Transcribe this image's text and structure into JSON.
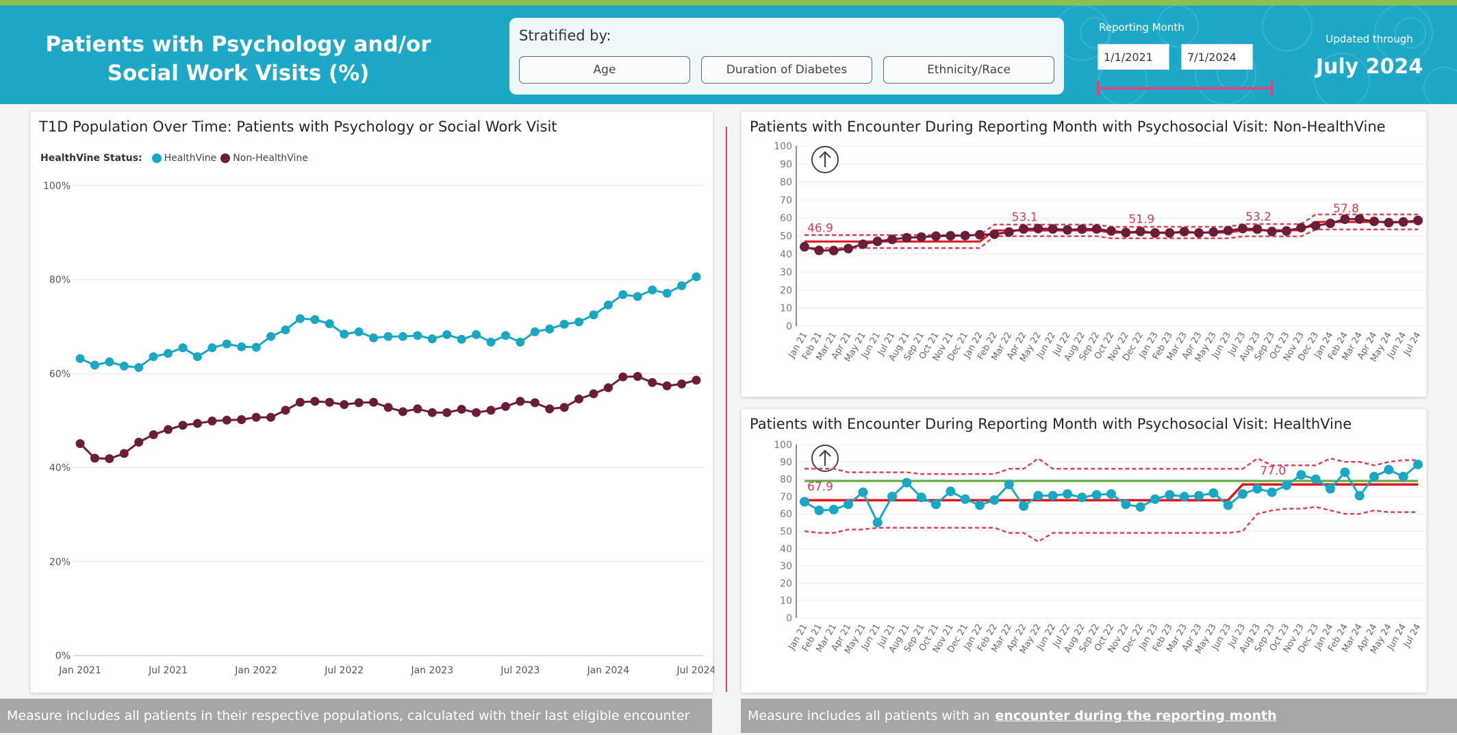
{
  "header": {
    "title": "Patients with Psychology and/or\nSocial Work Visits (%)",
    "stratified_label": "Stratified by:",
    "buttons": [
      "Age",
      "Duration of Diabetes",
      "Ethnicity/Race"
    ],
    "reporting_label": "Reporting Month",
    "date_from": "1/1/2021",
    "date_to": "7/1/2024",
    "updated_label": "Updated through",
    "updated_value": "July 2024"
  },
  "colors": {
    "header": "#1ca8c6",
    "healthvine": "#1aa7c4",
    "non_healthvine": "#6b1d38",
    "center_line": "#e0161e",
    "control_limit": "#e04050",
    "goal_line": "#5daa3c"
  },
  "footer": {
    "left": "Measure includes all patients in their respective populations, calculated with their last eligible encounter",
    "right_prefix": "Measure includes all patients with an",
    "right_link": "encounter during the reporting month"
  },
  "chart_data": [
    {
      "type": "line",
      "title": "T1D Population Over Time: Patients with Psychology or Social Work Visit",
      "legend_title": "HealthVine Status:",
      "legend_position": "top-left",
      "x_ticks": [
        "Jan 2021",
        "Jul 2021",
        "Jan 2022",
        "Jul 2022",
        "Jan 2023",
        "Jul 2023",
        "Jan 2024",
        "Jul 2024"
      ],
      "y_ticks": [
        "0%",
        "20%",
        "40%",
        "60%",
        "80%",
        "100%"
      ],
      "ylim": [
        0,
        100
      ],
      "grid": true,
      "series": [
        {
          "name": "HealthVine",
          "values": [
            63.2,
            61.8,
            62.5,
            61.6,
            61.3,
            63.6,
            64.3,
            65.5,
            63.6,
            65.5,
            66.3,
            65.7,
            65.6,
            67.9,
            69.3,
            71.7,
            71.5,
            70.6,
            68.4,
            68.9,
            67.6,
            67.9,
            67.9,
            68.1,
            67.4,
            68.3,
            67.3,
            68.3,
            66.7,
            68.1,
            66.7,
            68.9,
            69.5,
            70.5,
            71.0,
            72.5,
            74.6,
            76.8,
            76.4,
            77.8,
            77.1,
            78.7,
            80.6
          ]
        },
        {
          "name": "Non-HealthVine",
          "values": [
            45.1,
            42.0,
            41.9,
            43.0,
            45.4,
            47.0,
            48.1,
            49.0,
            49.4,
            49.9,
            50.1,
            50.2,
            50.7,
            50.7,
            52.2,
            53.9,
            54.1,
            53.9,
            53.4,
            53.8,
            53.9,
            52.8,
            51.9,
            52.5,
            51.7,
            51.7,
            52.4,
            51.7,
            52.2,
            53.0,
            54.1,
            53.8,
            52.5,
            52.8,
            54.6,
            55.7,
            57.0,
            59.3,
            59.4,
            58.1,
            57.4,
            57.8,
            58.6
          ]
        }
      ]
    },
    {
      "type": "line",
      "title": "Patients with Encounter During Reporting Month with Psychosocial Visit: Non-HealthVine",
      "x_ticks": [
        "Jan 21",
        "Feb 21",
        "Mar 21",
        "Apr 21",
        "May 21",
        "Jun 21",
        "Jul 21",
        "Aug 21",
        "Sep 21",
        "Oct 21",
        "Nov 21",
        "Dec 21",
        "Jan 22",
        "Feb 22",
        "Mar 22",
        "Apr 22",
        "May 22",
        "Jun 22",
        "Jul 22",
        "Aug 22",
        "Sep 22",
        "Oct 22",
        "Nov 22",
        "Dec 22",
        "Jan 23",
        "Feb 23",
        "Mar 23",
        "Apr 23",
        "May 23",
        "Jun 23",
        "Jul 23",
        "Aug 23",
        "Sep 23",
        "Oct 23",
        "Nov 23",
        "Dec 23",
        "Jan 24",
        "Feb 24",
        "Mar 24",
        "Apr 24",
        "May 24",
        "Jun 24",
        "Jul 24"
      ],
      "y_ticks": [
        "0",
        "10",
        "20",
        "30",
        "40",
        "50",
        "60",
        "70",
        "80",
        "90",
        "100"
      ],
      "ylim": [
        0,
        100
      ],
      "grid": true,
      "center_labels": [
        {
          "x": "Jan 21",
          "label": "46.9"
        },
        {
          "x": "Mar 22",
          "label": "53.1"
        },
        {
          "x": "Nov 22",
          "label": "51.9"
        },
        {
          "x": "Jul 23",
          "label": "53.2"
        },
        {
          "x": "Jan 24",
          "label": "57.8"
        }
      ],
      "phases": [
        {
          "start": "Jan 21",
          "end": "Jan 22",
          "center": 46.9,
          "ucl": 50.5,
          "lcl": 43.3
        },
        {
          "start": "Feb 22",
          "end": "Sep 22",
          "center": 53.1,
          "ucl": 56.3,
          "lcl": 49.9
        },
        {
          "start": "Oct 22",
          "end": "Jun 23",
          "center": 51.9,
          "ucl": 55.1,
          "lcl": 48.7
        },
        {
          "start": "Jul 23",
          "end": "Nov 23",
          "center": 53.2,
          "ucl": 56.6,
          "lcl": 49.8
        },
        {
          "start": "Dec 23",
          "end": "Jul 24",
          "center": 57.8,
          "ucl": 62.0,
          "lcl": 53.6
        }
      ],
      "series": [
        {
          "values": [
            44.0,
            42.0,
            41.9,
            43.0,
            45.4,
            47.0,
            48.1,
            49.0,
            49.4,
            49.9,
            50.1,
            50.2,
            50.7,
            51.0,
            52.2,
            53.9,
            54.1,
            53.9,
            53.4,
            53.8,
            53.9,
            52.8,
            51.9,
            52.5,
            51.7,
            51.7,
            52.4,
            51.7,
            52.2,
            53.0,
            54.1,
            53.8,
            52.5,
            52.8,
            54.6,
            55.7,
            57.0,
            59.3,
            59.4,
            58.1,
            57.4,
            57.8,
            58.6
          ]
        }
      ]
    },
    {
      "type": "line",
      "title": "Patients with Encounter During Reporting Month with Psychosocial Visit: HealthVine",
      "x_ticks": [
        "Jan 21",
        "Feb 21",
        "Mar 21",
        "Apr 21",
        "May 21",
        "Jun 21",
        "Jul 21",
        "Aug 21",
        "Sep 21",
        "Oct 21",
        "Nov 21",
        "Dec 21",
        "Jan 22",
        "Feb 22",
        "Mar 22",
        "Apr 22",
        "May 22",
        "Jun 22",
        "Jul 22",
        "Aug 22",
        "Sep 22",
        "Oct 22",
        "Nov 22",
        "Dec 22",
        "Jan 23",
        "Feb 23",
        "Mar 23",
        "Apr 23",
        "May 23",
        "Jun 23",
        "Jul 23",
        "Aug 23",
        "Sep 23",
        "Oct 23",
        "Nov 23",
        "Dec 23",
        "Jan 24",
        "Feb 24",
        "Mar 24",
        "Apr 24",
        "May 24",
        "Jun 24",
        "Jul 24"
      ],
      "y_ticks": [
        "0",
        "10",
        "20",
        "30",
        "40",
        "50",
        "60",
        "70",
        "80",
        "90",
        "100"
      ],
      "ylim": [
        0,
        100
      ],
      "grid": true,
      "goal": 79,
      "center_labels": [
        {
          "x": "Jan 21",
          "label": "67.9"
        },
        {
          "x": "Aug 23",
          "label": "77.0"
        }
      ],
      "phases": [
        {
          "start": "Jan 21",
          "end": "Jun 23",
          "center": 67.9
        },
        {
          "start": "Jul 23",
          "end": "Jul 24",
          "center": 77.0
        }
      ],
      "ucl": [
        86,
        86,
        86,
        84,
        84,
        84,
        84,
        84,
        83,
        83,
        83,
        83,
        83,
        83,
        86,
        86,
        92,
        86,
        86,
        86,
        86,
        86,
        86,
        86,
        86,
        86,
        86,
        86,
        86,
        86,
        86,
        92,
        88,
        88,
        88,
        88,
        92,
        90,
        90,
        88,
        90,
        91,
        91
      ],
      "lcl": [
        50,
        49,
        49,
        51,
        51,
        52,
        52,
        52,
        52,
        52,
        52,
        52,
        52,
        52,
        49,
        49,
        44,
        49,
        49,
        49,
        49,
        49,
        49,
        49,
        49,
        49,
        49,
        49,
        49,
        49,
        50,
        60,
        62,
        63,
        63,
        64,
        62,
        60,
        60,
        62,
        61,
        61,
        61
      ],
      "series": [
        {
          "values": [
            67.0,
            62.0,
            62.5,
            65.5,
            72.5,
            55.0,
            70.0,
            78.0,
            69.5,
            65.5,
            73.0,
            68.5,
            65.0,
            68.0,
            77.0,
            64.5,
            70.5,
            70.5,
            71.5,
            69.5,
            71.0,
            71.5,
            65.5,
            64.0,
            68.5,
            71.0,
            70.0,
            70.5,
            72.0,
            65.0,
            71.5,
            74.5,
            72.5,
            76.5,
            82.5,
            80.0,
            74.5,
            84.0,
            70.5,
            81.5,
            85.5,
            81.5,
            88.5
          ]
        }
      ]
    }
  ]
}
